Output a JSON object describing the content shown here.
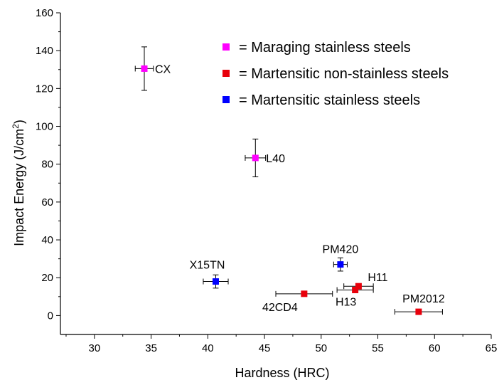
{
  "chart_data": {
    "type": "scatter",
    "title": "",
    "xlabel": "Hardness (HRC)",
    "ylabel": "Impact Energy (J/cm²)",
    "ylabel_parts": {
      "main": "Impact Energy (J/cm",
      "sup": "2",
      "close": ")"
    },
    "xlim": [
      27,
      65
    ],
    "ylim": [
      -10,
      160
    ],
    "xticks": [
      30,
      35,
      40,
      45,
      50,
      55,
      60,
      65
    ],
    "yticks": [
      0,
      20,
      40,
      60,
      80,
      100,
      120,
      140,
      160
    ],
    "grid": false,
    "legend_position": "top-right",
    "series": [
      {
        "name": "= Maraging stainless steels",
        "color": "#ff00ff",
        "points": [
          {
            "label": "CX",
            "x": 34.4,
            "y": 130.5,
            "xerr": 0.8,
            "yerr": 11.5
          },
          {
            "label": "L40",
            "x": 44.2,
            "y": 83.3,
            "xerr": 0.9,
            "yerr": 10.0
          }
        ]
      },
      {
        "name": "= Martensitic non-stainless steels",
        "color": "#e8000b",
        "points": [
          {
            "label": "42CD4",
            "x": 48.5,
            "y": 11.5,
            "xerr": 2.5,
            "yerr": 0
          },
          {
            "label": "H13",
            "x": 53.0,
            "y": 13.5,
            "xerr": 1.6,
            "yerr": 0
          },
          {
            "label": "H11",
            "x": 53.3,
            "y": 15.5,
            "xerr": 1.3,
            "yerr": 0
          },
          {
            "label": "PM2012",
            "x": 58.6,
            "y": 2.0,
            "xerr": 2.1,
            "yerr": 0
          }
        ]
      },
      {
        "name": "= Martensitic stainless steels",
        "color": "#0000ff",
        "points": [
          {
            "label": "X15TN",
            "x": 40.7,
            "y": 18.0,
            "xerr": 1.1,
            "yerr": 3.5
          },
          {
            "label": "PM420",
            "x": 51.7,
            "y": 27.0,
            "xerr": 0.6,
            "yerr": 3.5
          }
        ]
      }
    ]
  }
}
